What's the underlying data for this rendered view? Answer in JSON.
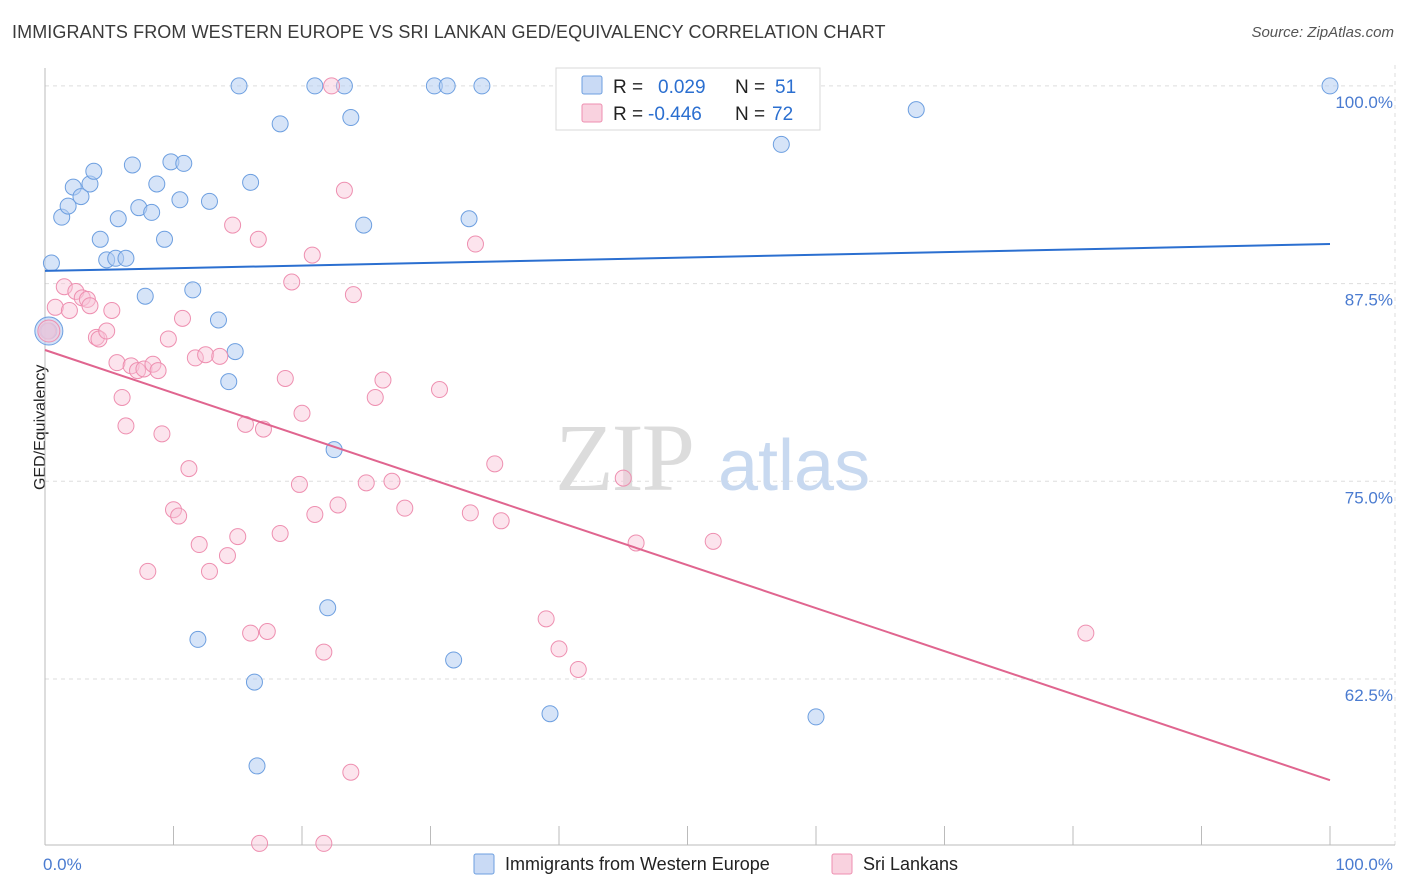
{
  "header": {
    "title": "IMMIGRANTS FROM WESTERN EUROPE VS SRI LANKAN GED/EQUIVALENCY CORRELATION CHART",
    "source": "Source: ZipAtlas.com"
  },
  "watermark": {
    "part1": "ZIP",
    "part2": "atlas"
  },
  "stats": [
    {
      "r_label": "R =",
      "r_value": "0.029",
      "n_label": "N =",
      "n_value": "51"
    },
    {
      "r_label": "R =",
      "r_value": "-0.446",
      "n_label": "N =",
      "n_value": "72"
    }
  ],
  "chart_data": {
    "type": "scatter",
    "ylabel": "GED/Equivalency",
    "xlim": [
      0,
      100
    ],
    "ylim": [
      52,
      100.5
    ],
    "x_tick_labels": [
      "0.0%",
      "100.0%"
    ],
    "y_ticks": [
      62.5,
      75.0,
      87.5,
      100.0
    ],
    "y_tick_labels": [
      "62.5%",
      "75.0%",
      "87.5%",
      "100.0%"
    ],
    "grid": true,
    "legend_position": "bottom",
    "colors": {
      "blue": "#6d9fe0",
      "blue_line": "#2b6fd0",
      "pink": "#ee8fb0",
      "pink_line": "#e0658f",
      "axis_text": "#4a7bd0"
    },
    "series": [
      {
        "name": "Immigrants from Western Europe",
        "color": "blue",
        "trend": [
          [
            0,
            88.3
          ],
          [
            100,
            90.0
          ]
        ],
        "points": [
          [
            0.3,
            84.5
          ],
          [
            0.5,
            88.8
          ],
          [
            1.3,
            91.7
          ],
          [
            1.8,
            92.4
          ],
          [
            2.2,
            93.6
          ],
          [
            2.8,
            93.0
          ],
          [
            3.5,
            93.8
          ],
          [
            3.8,
            94.6
          ],
          [
            4.3,
            90.3
          ],
          [
            4.8,
            89.0
          ],
          [
            5.5,
            89.1
          ],
          [
            5.7,
            91.6
          ],
          [
            6.3,
            89.1
          ],
          [
            6.8,
            95.0
          ],
          [
            7.3,
            92.3
          ],
          [
            7.8,
            86.7
          ],
          [
            8.3,
            92.0
          ],
          [
            8.7,
            93.8
          ],
          [
            9.3,
            90.3
          ],
          [
            9.8,
            95.2
          ],
          [
            10.5,
            92.8
          ],
          [
            10.8,
            95.1
          ],
          [
            11.5,
            87.1
          ],
          [
            11.9,
            65.0
          ],
          [
            12.8,
            92.7
          ],
          [
            13.5,
            85.2
          ],
          [
            14.3,
            81.3
          ],
          [
            14.8,
            83.2
          ],
          [
            15.1,
            100.0
          ],
          [
            16.0,
            93.9
          ],
          [
            16.3,
            62.3
          ],
          [
            16.5,
            57.0
          ],
          [
            18.3,
            97.6
          ],
          [
            21.0,
            100.0
          ],
          [
            22.0,
            67.0
          ],
          [
            22.5,
            77.0
          ],
          [
            23.3,
            100.0
          ],
          [
            23.8,
            98.0
          ],
          [
            24.8,
            91.2
          ],
          [
            30.3,
            100.0
          ],
          [
            31.3,
            100.0
          ],
          [
            31.8,
            63.7
          ],
          [
            33.0,
            91.6
          ],
          [
            34.0,
            100.0
          ],
          [
            39.3,
            60.3
          ],
          [
            46.8,
            100.0
          ],
          [
            48.8,
            100.0
          ],
          [
            57.3,
            96.3
          ],
          [
            60.0,
            60.1
          ],
          [
            67.8,
            98.5
          ],
          [
            100.0,
            100.0
          ]
        ]
      },
      {
        "name": "Sri Lankans",
        "color": "pink",
        "trend": [
          [
            0,
            83.3
          ],
          [
            100,
            56.1
          ]
        ],
        "points": [
          [
            0.2,
            84.5
          ],
          [
            0.8,
            86.0
          ],
          [
            1.5,
            87.3
          ],
          [
            1.9,
            85.8
          ],
          [
            2.4,
            87.0
          ],
          [
            2.9,
            86.6
          ],
          [
            3.3,
            86.5
          ],
          [
            3.5,
            86.1
          ],
          [
            4.0,
            84.1
          ],
          [
            4.2,
            84.0
          ],
          [
            4.8,
            84.5
          ],
          [
            5.2,
            85.8
          ],
          [
            5.6,
            82.5
          ],
          [
            6.0,
            80.3
          ],
          [
            6.3,
            78.5
          ],
          [
            6.7,
            82.3
          ],
          [
            7.2,
            82.0
          ],
          [
            7.7,
            82.1
          ],
          [
            8.0,
            69.3
          ],
          [
            8.4,
            82.4
          ],
          [
            8.8,
            82.0
          ],
          [
            9.1,
            78.0
          ],
          [
            9.6,
            84.0
          ],
          [
            10.0,
            73.2
          ],
          [
            10.4,
            72.8
          ],
          [
            10.7,
            85.3
          ],
          [
            11.2,
            75.8
          ],
          [
            11.7,
            82.8
          ],
          [
            12.0,
            71.0
          ],
          [
            12.5,
            83.0
          ],
          [
            12.8,
            69.3
          ],
          [
            13.6,
            82.9
          ],
          [
            14.2,
            70.3
          ],
          [
            14.6,
            91.2
          ],
          [
            15.0,
            71.5
          ],
          [
            15.6,
            78.6
          ],
          [
            16.0,
            65.4
          ],
          [
            16.6,
            90.3
          ],
          [
            17.0,
            78.3
          ],
          [
            17.3,
            65.5
          ],
          [
            18.3,
            71.7
          ],
          [
            18.7,
            81.5
          ],
          [
            19.2,
            87.6
          ],
          [
            19.8,
            74.8
          ],
          [
            20.0,
            79.3
          ],
          [
            20.8,
            89.3
          ],
          [
            21.0,
            72.9
          ],
          [
            21.7,
            64.2
          ],
          [
            22.3,
            100.0
          ],
          [
            22.8,
            73.5
          ],
          [
            23.3,
            93.4
          ],
          [
            23.8,
            56.6
          ],
          [
            24.0,
            86.8
          ],
          [
            25.0,
            74.9
          ],
          [
            25.7,
            80.3
          ],
          [
            26.3,
            81.4
          ],
          [
            27.0,
            75.0
          ],
          [
            28.0,
            73.3
          ],
          [
            30.7,
            80.8
          ],
          [
            33.1,
            73.0
          ],
          [
            33.5,
            90.0
          ],
          [
            35.0,
            76.1
          ],
          [
            35.5,
            72.5
          ],
          [
            39.0,
            66.3
          ],
          [
            40.0,
            64.4
          ],
          [
            41.5,
            63.1
          ],
          [
            45.0,
            75.2
          ],
          [
            46.0,
            71.1
          ],
          [
            52.0,
            71.2
          ],
          [
            81.0,
            65.4
          ],
          [
            16.7,
            52.1
          ],
          [
            21.7,
            52.1
          ]
        ]
      }
    ]
  },
  "legend": [
    {
      "label": "Immigrants from Western Europe",
      "color": "blue"
    },
    {
      "label": "Sri Lankans",
      "color": "pink"
    }
  ]
}
